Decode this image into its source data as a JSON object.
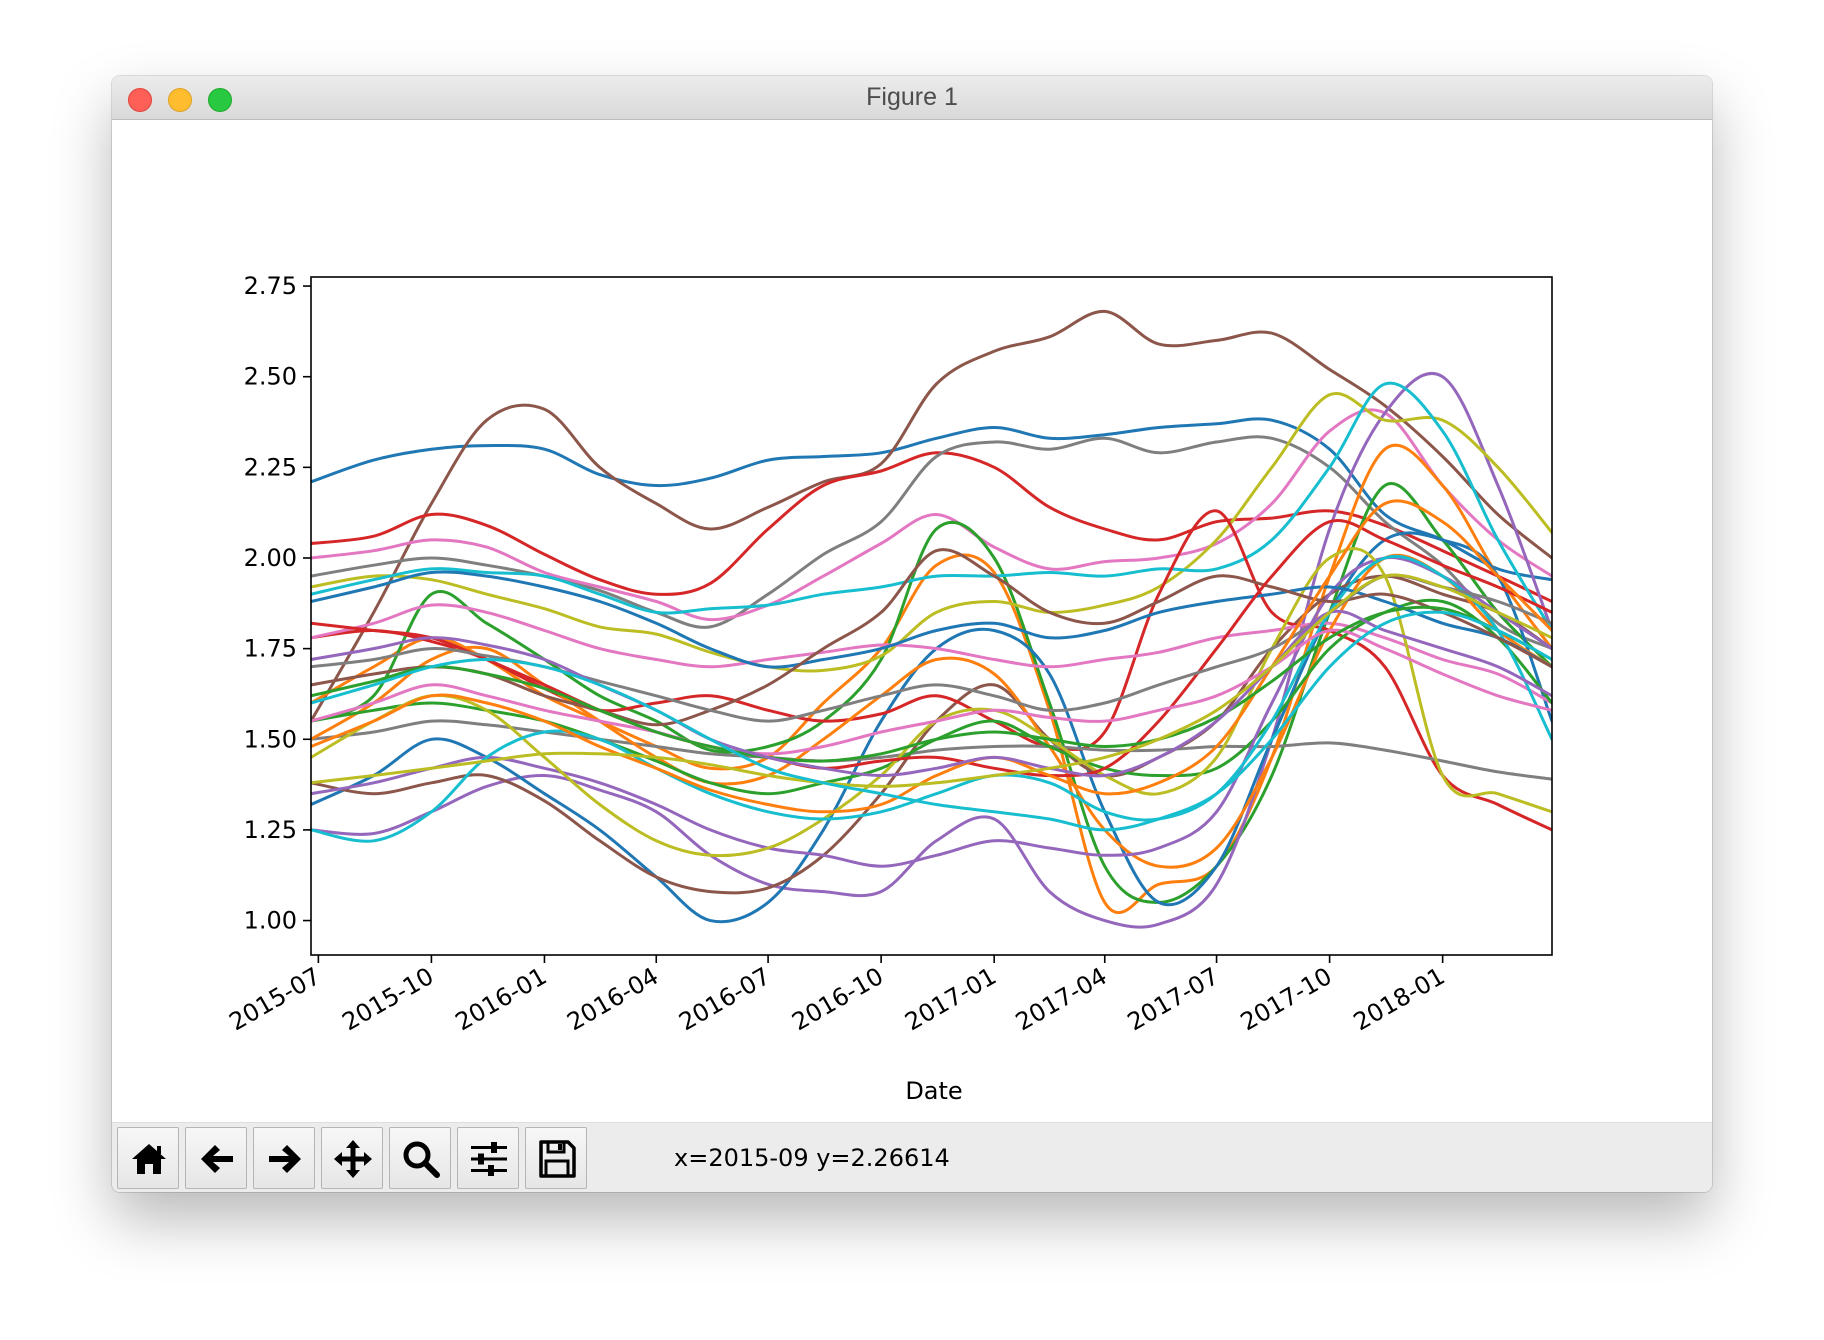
{
  "window": {
    "title": "Figure 1"
  },
  "toolbar": {
    "buttons": [
      {
        "name": "home",
        "icon": "home-icon"
      },
      {
        "name": "back",
        "icon": "arrow-left-icon"
      },
      {
        "name": "forward",
        "icon": "arrow-right-icon"
      },
      {
        "name": "pan",
        "icon": "move-icon"
      },
      {
        "name": "zoom",
        "icon": "magnifier-icon"
      },
      {
        "name": "configure-subplots",
        "icon": "sliders-icon"
      },
      {
        "name": "save",
        "icon": "floppy-disk-icon"
      }
    ],
    "coordinates": "x=2015-09 y=2.26614"
  },
  "chart_data": {
    "type": "line",
    "title": "",
    "xlabel": "Date",
    "ylabel": "",
    "x_range": [
      "2015-06-25",
      "2018-03-31"
    ],
    "ylim": [
      0.905,
      2.775
    ],
    "grid": false,
    "legend": "none",
    "x_ticks": [
      "2015-07",
      "2015-10",
      "2016-01",
      "2016-04",
      "2016-07",
      "2016-10",
      "2017-01",
      "2017-04",
      "2017-07",
      "2017-10",
      "2018-01"
    ],
    "y_ticks": [
      "1.00",
      "1.25",
      "1.50",
      "1.75",
      "2.00",
      "2.25",
      "2.50",
      "2.75"
    ],
    "x": [
      "2015-06-25",
      "2015-08-15",
      "2015-10-01",
      "2015-11-15",
      "2016-01-01",
      "2016-02-15",
      "2016-04-01",
      "2016-05-15",
      "2016-07-01",
      "2016-08-15",
      "2016-10-01",
      "2016-11-15",
      "2017-01-01",
      "2017-02-15",
      "2017-04-01",
      "2017-05-15",
      "2017-07-01",
      "2017-08-15",
      "2017-10-01",
      "2017-11-15",
      "2018-01-01",
      "2018-02-15",
      "2018-03-31"
    ],
    "series": [
      {
        "color": "#1f77b4",
        "values": [
          2.21,
          2.27,
          2.3,
          2.31,
          2.3,
          2.23,
          2.2,
          2.22,
          2.27,
          2.28,
          2.29,
          2.33,
          2.36,
          2.33,
          2.34,
          2.36,
          2.37,
          2.38,
          2.3,
          2.12,
          2.05,
          1.97,
          1.94
        ]
      },
      {
        "color": "#8c564b",
        "values": [
          1.55,
          1.85,
          2.15,
          2.38,
          2.41,
          2.25,
          2.15,
          2.08,
          2.14,
          2.21,
          2.26,
          2.48,
          2.57,
          2.61,
          2.68,
          2.59,
          2.6,
          2.62,
          2.52,
          2.42,
          2.28,
          2.12,
          2.0
        ]
      },
      {
        "color": "#d62728",
        "values": [
          2.04,
          2.06,
          2.12,
          2.09,
          2.01,
          1.94,
          1.9,
          1.93,
          2.08,
          2.2,
          2.24,
          2.29,
          2.25,
          2.14,
          2.08,
          2.05,
          2.1,
          2.11,
          2.13,
          2.09,
          2.02,
          1.95,
          1.88
        ]
      },
      {
        "color": "#7f7f7f",
        "values": [
          1.95,
          1.98,
          2.0,
          1.98,
          1.95,
          1.91,
          1.85,
          1.81,
          1.9,
          2.01,
          2.1,
          2.28,
          2.32,
          2.3,
          2.33,
          2.29,
          2.32,
          2.33,
          2.25,
          2.1,
          1.98,
          1.82,
          1.75
        ]
      },
      {
        "color": "#e377c2",
        "values": [
          2.0,
          2.02,
          2.05,
          2.03,
          1.96,
          1.92,
          1.88,
          1.83,
          1.87,
          1.95,
          2.04,
          2.12,
          2.03,
          1.97,
          1.99,
          2.0,
          2.04,
          2.15,
          2.35,
          2.4,
          2.2,
          2.05,
          1.95
        ]
      },
      {
        "color": "#ff7f0e",
        "values": [
          1.6,
          1.7,
          1.78,
          1.72,
          1.62,
          1.55,
          1.48,
          1.42,
          1.45,
          1.6,
          1.75,
          1.98,
          1.96,
          1.58,
          1.05,
          1.1,
          1.15,
          1.45,
          1.95,
          2.3,
          2.2,
          1.95,
          1.75
        ]
      },
      {
        "color": "#2ca02c",
        "values": [
          1.55,
          1.62,
          1.9,
          1.82,
          1.72,
          1.62,
          1.55,
          1.47,
          1.48,
          1.55,
          1.72,
          2.08,
          2.0,
          1.6,
          1.15,
          1.05,
          1.15,
          1.4,
          1.85,
          2.2,
          2.05,
          1.85,
          1.7
        ]
      },
      {
        "color": "#9467bd",
        "values": [
          1.25,
          1.24,
          1.3,
          1.37,
          1.4,
          1.36,
          1.3,
          1.18,
          1.1,
          1.08,
          1.08,
          1.22,
          1.28,
          1.08,
          1.0,
          0.99,
          1.1,
          1.5,
          2.08,
          2.4,
          2.5,
          2.2,
          1.8
        ]
      },
      {
        "color": "#bcbd22",
        "values": [
          1.92,
          1.95,
          1.94,
          1.9,
          1.86,
          1.81,
          1.79,
          1.74,
          1.7,
          1.69,
          1.73,
          1.85,
          1.88,
          1.85,
          1.87,
          1.92,
          2.05,
          2.25,
          2.45,
          2.38,
          2.38,
          2.25,
          2.07
        ]
      },
      {
        "color": "#17becf",
        "values": [
          1.9,
          1.94,
          1.97,
          1.96,
          1.95,
          1.9,
          1.85,
          1.86,
          1.87,
          1.9,
          1.92,
          1.95,
          1.95,
          1.96,
          1.95,
          1.97,
          1.97,
          2.05,
          2.25,
          2.48,
          2.35,
          2.05,
          1.8
        ]
      },
      {
        "color": "#1f77b4",
        "values": [
          1.32,
          1.4,
          1.5,
          1.45,
          1.35,
          1.25,
          1.12,
          1.0,
          1.05,
          1.25,
          1.55,
          1.75,
          1.8,
          1.68,
          1.3,
          1.05,
          1.15,
          1.5,
          1.85,
          2.05,
          2.05,
          1.95,
          1.55
        ]
      },
      {
        "color": "#8c564b",
        "values": [
          1.38,
          1.35,
          1.38,
          1.4,
          1.33,
          1.22,
          1.12,
          1.08,
          1.09,
          1.18,
          1.35,
          1.55,
          1.65,
          1.5,
          1.4,
          1.45,
          1.55,
          1.75,
          1.9,
          1.95,
          1.9,
          1.85,
          1.75
        ]
      },
      {
        "color": "#d62728",
        "values": [
          1.78,
          1.8,
          1.77,
          1.72,
          1.64,
          1.58,
          1.6,
          1.62,
          1.58,
          1.55,
          1.57,
          1.62,
          1.55,
          1.48,
          1.52,
          1.9,
          2.13,
          1.85,
          1.8,
          1.7,
          1.4,
          1.32,
          1.25
        ]
      },
      {
        "color": "#7f7f7f",
        "values": [
          1.5,
          1.52,
          1.55,
          1.54,
          1.52,
          1.5,
          1.48,
          1.46,
          1.45,
          1.44,
          1.45,
          1.47,
          1.48,
          1.48,
          1.47,
          1.47,
          1.48,
          1.48,
          1.49,
          1.47,
          1.44,
          1.41,
          1.39
        ]
      },
      {
        "color": "#e377c2",
        "values": [
          1.78,
          1.82,
          1.87,
          1.85,
          1.8,
          1.75,
          1.72,
          1.7,
          1.72,
          1.74,
          1.76,
          1.75,
          1.72,
          1.7,
          1.72,
          1.74,
          1.78,
          1.8,
          1.82,
          1.78,
          1.72,
          1.68,
          1.6
        ]
      },
      {
        "color": "#ff7f0e",
        "values": [
          1.5,
          1.6,
          1.72,
          1.75,
          1.65,
          1.55,
          1.45,
          1.38,
          1.4,
          1.5,
          1.62,
          1.72,
          1.68,
          1.48,
          1.25,
          1.15,
          1.2,
          1.45,
          1.8,
          2.0,
          1.95,
          1.8,
          1.7
        ]
      },
      {
        "color": "#2ca02c",
        "values": [
          1.55,
          1.58,
          1.6,
          1.58,
          1.55,
          1.5,
          1.44,
          1.38,
          1.35,
          1.38,
          1.42,
          1.5,
          1.55,
          1.48,
          1.42,
          1.4,
          1.42,
          1.55,
          1.75,
          1.85,
          1.88,
          1.78,
          1.6
        ]
      },
      {
        "color": "#9467bd",
        "values": [
          1.35,
          1.38,
          1.42,
          1.45,
          1.42,
          1.38,
          1.32,
          1.25,
          1.2,
          1.18,
          1.15,
          1.18,
          1.22,
          1.2,
          1.18,
          1.2,
          1.3,
          1.6,
          1.9,
          2.0,
          1.95,
          1.85,
          1.75
        ]
      },
      {
        "color": "#bcbd22",
        "values": [
          1.45,
          1.55,
          1.62,
          1.58,
          1.45,
          1.32,
          1.22,
          1.18,
          1.2,
          1.28,
          1.4,
          1.55,
          1.58,
          1.5,
          1.4,
          1.35,
          1.45,
          1.75,
          2.0,
          1.95,
          1.4,
          1.35,
          1.3
        ]
      },
      {
        "color": "#17becf",
        "values": [
          1.25,
          1.22,
          1.3,
          1.45,
          1.52,
          1.5,
          1.42,
          1.35,
          1.3,
          1.28,
          1.3,
          1.35,
          1.4,
          1.38,
          1.3,
          1.28,
          1.35,
          1.55,
          1.85,
          2.0,
          1.95,
          1.8,
          1.5
        ]
      },
      {
        "color": "#1f77b4",
        "values": [
          1.88,
          1.92,
          1.96,
          1.95,
          1.92,
          1.88,
          1.82,
          1.75,
          1.7,
          1.72,
          1.75,
          1.8,
          1.82,
          1.78,
          1.8,
          1.85,
          1.88,
          1.9,
          1.92,
          1.88,
          1.82,
          1.78,
          1.7
        ]
      },
      {
        "color": "#8c564b",
        "values": [
          1.65,
          1.68,
          1.7,
          1.68,
          1.62,
          1.58,
          1.54,
          1.58,
          1.65,
          1.75,
          1.85,
          2.02,
          1.95,
          1.85,
          1.82,
          1.88,
          1.95,
          1.92,
          1.88,
          1.9,
          1.85,
          1.78,
          1.7
        ]
      },
      {
        "color": "#d62728",
        "values": [
          1.82,
          1.8,
          1.78,
          1.72,
          1.65,
          1.58,
          1.52,
          1.48,
          1.45,
          1.42,
          1.44,
          1.45,
          1.42,
          1.4,
          1.42,
          1.55,
          1.75,
          1.95,
          2.1,
          2.05,
          1.98,
          1.92,
          1.85
        ]
      },
      {
        "color": "#7f7f7f",
        "values": [
          1.7,
          1.72,
          1.75,
          1.73,
          1.7,
          1.66,
          1.62,
          1.58,
          1.55,
          1.58,
          1.62,
          1.65,
          1.62,
          1.58,
          1.6,
          1.65,
          1.7,
          1.75,
          1.85,
          1.95,
          1.92,
          1.88,
          1.82
        ]
      },
      {
        "color": "#e377c2",
        "values": [
          1.55,
          1.6,
          1.65,
          1.62,
          1.58,
          1.55,
          1.52,
          1.48,
          1.46,
          1.48,
          1.52,
          1.55,
          1.58,
          1.56,
          1.55,
          1.58,
          1.62,
          1.7,
          1.8,
          1.75,
          1.68,
          1.62,
          1.58
        ]
      },
      {
        "color": "#ff7f0e",
        "values": [
          1.48,
          1.55,
          1.62,
          1.6,
          1.55,
          1.48,
          1.42,
          1.36,
          1.32,
          1.3,
          1.32,
          1.4,
          1.45,
          1.4,
          1.35,
          1.38,
          1.48,
          1.7,
          1.95,
          2.15,
          2.1,
          1.95,
          1.8
        ]
      },
      {
        "color": "#2ca02c",
        "values": [
          1.62,
          1.66,
          1.7,
          1.68,
          1.64,
          1.58,
          1.52,
          1.48,
          1.45,
          1.44,
          1.46,
          1.5,
          1.52,
          1.5,
          1.48,
          1.5,
          1.56,
          1.66,
          1.78,
          1.85,
          1.86,
          1.8,
          1.72
        ]
      },
      {
        "color": "#9467bd",
        "values": [
          1.72,
          1.75,
          1.78,
          1.76,
          1.72,
          1.65,
          1.58,
          1.5,
          1.45,
          1.42,
          1.4,
          1.42,
          1.45,
          1.42,
          1.4,
          1.45,
          1.55,
          1.7,
          1.85,
          1.8,
          1.75,
          1.7,
          1.62
        ]
      },
      {
        "color": "#bcbd22",
        "values": [
          1.38,
          1.4,
          1.42,
          1.44,
          1.46,
          1.46,
          1.45,
          1.43,
          1.4,
          1.38,
          1.37,
          1.38,
          1.4,
          1.42,
          1.45,
          1.5,
          1.58,
          1.7,
          1.85,
          1.95,
          1.92,
          1.85,
          1.78
        ]
      },
      {
        "color": "#17becf",
        "values": [
          1.6,
          1.65,
          1.7,
          1.72,
          1.7,
          1.65,
          1.58,
          1.5,
          1.42,
          1.38,
          1.35,
          1.32,
          1.3,
          1.28,
          1.25,
          1.28,
          1.35,
          1.5,
          1.7,
          1.82,
          1.85,
          1.8,
          1.72
        ]
      }
    ]
  }
}
